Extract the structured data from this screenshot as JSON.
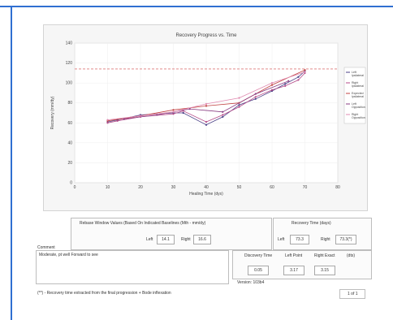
{
  "chart_data": {
    "type": "line",
    "title": "Recovery Progress vs. Time",
    "xlabel": "Healing Time (dys)",
    "ylabel": "Recovery (mm/dy)",
    "xlim": [
      0,
      80
    ],
    "ylim": [
      0,
      140
    ],
    "x_ticks": [
      "0",
      "10",
      "20",
      "30",
      "40",
      "50",
      "60",
      "70",
      "80"
    ],
    "y_ticks": [
      "0",
      "20",
      "40",
      "60",
      "80",
      "100",
      "120",
      "140"
    ],
    "target_line": 114,
    "series": [
      {
        "name": "Left Ipsilateral",
        "color": "#4a3f86",
        "x": [
          10,
          13,
          20,
          30,
          33,
          40,
          45,
          50,
          55,
          60,
          64,
          68,
          70
        ],
        "y": [
          61,
          63,
          68,
          70,
          70,
          58,
          66,
          78,
          84,
          92,
          99,
          106,
          112
        ]
      },
      {
        "name": "Right Ipsilateral",
        "color": "#b44a88",
        "x": [
          10,
          13,
          20,
          30,
          33,
          40,
          45,
          50,
          55,
          60,
          64,
          68,
          70
        ],
        "y": [
          60,
          62,
          66,
          69,
          72,
          61,
          68,
          76,
          86,
          93,
          97,
          103,
          110
        ]
      },
      {
        "name": "Expected Ipsilateral",
        "color": "#c04040",
        "x": [
          10,
          20,
          30,
          40,
          50,
          60,
          70
        ],
        "y": [
          62,
          67,
          73,
          77,
          80,
          98,
          113
        ]
      },
      {
        "name": "Left Opposition",
        "color": "#8a3c82",
        "x": [
          15,
          25,
          35,
          45,
          55,
          65
        ],
        "y": [
          64,
          68,
          74,
          71,
          89,
          102
        ]
      },
      {
        "name": "Right Opposition",
        "color": "#e08ab0",
        "x": [
          10,
          20,
          30,
          40,
          50,
          60,
          70
        ],
        "y": [
          63,
          67,
          71,
          79,
          85,
          100,
          111
        ]
      }
    ]
  },
  "rebase": {
    "title": "Rebase Window Values (Based On Indicated Baselines (Mth - mm/dy)",
    "left_label": "Left",
    "left_value": "14.1",
    "right_label": "Right",
    "right_value": "16.6"
  },
  "recovery": {
    "title": "Recovery Time (days)",
    "left_label": "Left",
    "left_value": "73.3",
    "right_label": "Right",
    "right_value": "73.3(*)"
  },
  "comment": {
    "label": "Comment",
    "text": "Moderate, pt well Forward to see"
  },
  "bottom": {
    "discovery_label": "Discovery Time",
    "discovery_value": "0.05",
    "leftpoint_label": "Left Point",
    "leftpoint_value": "3.17",
    "rightexact_label": "Right Exact",
    "rightexact_value": "3.15",
    "unit_label": "(dts)",
    "version_label": "Version: 103b4",
    "footnote": "(**) - Recovery time extracted from the final progression + Bode inflexation",
    "page_label": "1 of 1"
  }
}
